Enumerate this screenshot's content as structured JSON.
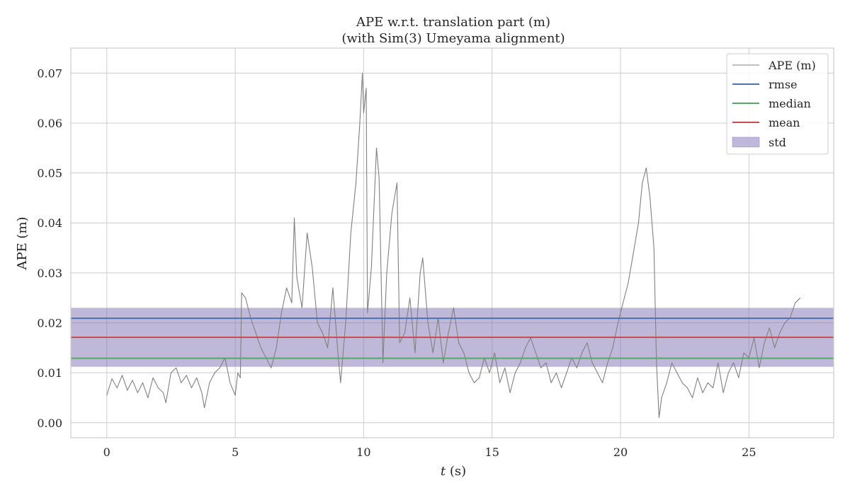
{
  "chart_data": {
    "type": "line",
    "title": "APE w.r.t. translation part (m)",
    "subtitle": "(with Sim(3) Umeyama alignment)",
    "xlabel_italic": "t",
    "xlabel_rest": " (s)",
    "ylabel": "APE (m)",
    "xlim": [
      -1.4,
      28.3
    ],
    "ylim": [
      -0.003,
      0.075
    ],
    "x_ticks": [
      0,
      5,
      10,
      15,
      20,
      25
    ],
    "y_ticks": [
      0.0,
      0.01,
      0.02,
      0.03,
      0.04,
      0.05,
      0.06,
      0.07
    ],
    "y_tick_labels": [
      "0.00",
      "0.01",
      "0.02",
      "0.03",
      "0.04",
      "0.05",
      "0.06",
      "0.07"
    ],
    "grid": true,
    "legend_position": "top-right",
    "colors": {
      "ape": "#808080",
      "rmse": "#4c72b0",
      "median": "#55a868",
      "mean": "#c44e52",
      "std": "#8172b3",
      "grid": "#cccccc",
      "frame": "#cccccc"
    },
    "stats": {
      "rmse": 0.0209,
      "median": 0.0129,
      "mean": 0.0171,
      "std": 0.0059
    },
    "legend": {
      "ape": "APE (m)",
      "rmse": "rmse",
      "median": "median",
      "mean": "mean",
      "std": "std"
    },
    "series": [
      {
        "name": "APE (m)",
        "points": [
          [
            0.0,
            0.0055
          ],
          [
            0.2,
            0.0088
          ],
          [
            0.4,
            0.007
          ],
          [
            0.6,
            0.0095
          ],
          [
            0.8,
            0.0065
          ],
          [
            1.0,
            0.0085
          ],
          [
            1.2,
            0.006
          ],
          [
            1.4,
            0.008
          ],
          [
            1.6,
            0.005
          ],
          [
            1.8,
            0.009
          ],
          [
            2.0,
            0.007
          ],
          [
            2.2,
            0.006
          ],
          [
            2.3,
            0.004
          ],
          [
            2.5,
            0.01
          ],
          [
            2.7,
            0.011
          ],
          [
            2.9,
            0.008
          ],
          [
            3.1,
            0.0095
          ],
          [
            3.3,
            0.007
          ],
          [
            3.5,
            0.009
          ],
          [
            3.7,
            0.006
          ],
          [
            3.8,
            0.003
          ],
          [
            4.0,
            0.008
          ],
          [
            4.2,
            0.01
          ],
          [
            4.4,
            0.011
          ],
          [
            4.6,
            0.013
          ],
          [
            4.8,
            0.008
          ],
          [
            5.0,
            0.0055
          ],
          [
            5.1,
            0.01
          ],
          [
            5.2,
            0.009
          ],
          [
            5.25,
            0.026
          ],
          [
            5.4,
            0.025
          ],
          [
            5.6,
            0.021
          ],
          [
            5.8,
            0.018
          ],
          [
            6.0,
            0.015
          ],
          [
            6.2,
            0.013
          ],
          [
            6.4,
            0.011
          ],
          [
            6.6,
            0.015
          ],
          [
            6.8,
            0.022
          ],
          [
            7.0,
            0.027
          ],
          [
            7.2,
            0.024
          ],
          [
            7.3,
            0.041
          ],
          [
            7.4,
            0.029
          ],
          [
            7.6,
            0.023
          ],
          [
            7.8,
            0.038
          ],
          [
            8.0,
            0.031
          ],
          [
            8.2,
            0.02
          ],
          [
            8.4,
            0.018
          ],
          [
            8.6,
            0.015
          ],
          [
            8.8,
            0.027
          ],
          [
            9.0,
            0.014
          ],
          [
            9.1,
            0.008
          ],
          [
            9.3,
            0.02
          ],
          [
            9.5,
            0.038
          ],
          [
            9.7,
            0.048
          ],
          [
            9.85,
            0.06
          ],
          [
            9.95,
            0.07
          ],
          [
            10.0,
            0.062
          ],
          [
            10.1,
            0.067
          ],
          [
            10.15,
            0.022
          ],
          [
            10.3,
            0.031
          ],
          [
            10.5,
            0.055
          ],
          [
            10.6,
            0.049
          ],
          [
            10.75,
            0.012
          ],
          [
            10.9,
            0.03
          ],
          [
            11.1,
            0.042
          ],
          [
            11.3,
            0.048
          ],
          [
            11.4,
            0.016
          ],
          [
            11.6,
            0.018
          ],
          [
            11.8,
            0.025
          ],
          [
            12.0,
            0.014
          ],
          [
            12.2,
            0.03
          ],
          [
            12.3,
            0.033
          ],
          [
            12.5,
            0.02
          ],
          [
            12.7,
            0.014
          ],
          [
            12.9,
            0.021
          ],
          [
            13.1,
            0.012
          ],
          [
            13.3,
            0.018
          ],
          [
            13.5,
            0.023
          ],
          [
            13.7,
            0.016
          ],
          [
            13.9,
            0.014
          ],
          [
            14.1,
            0.01
          ],
          [
            14.3,
            0.008
          ],
          [
            14.5,
            0.009
          ],
          [
            14.7,
            0.013
          ],
          [
            14.9,
            0.01
          ],
          [
            15.1,
            0.014
          ],
          [
            15.3,
            0.008
          ],
          [
            15.5,
            0.011
          ],
          [
            15.7,
            0.006
          ],
          [
            15.9,
            0.01
          ],
          [
            16.1,
            0.012
          ],
          [
            16.3,
            0.015
          ],
          [
            16.5,
            0.017
          ],
          [
            16.7,
            0.014
          ],
          [
            16.9,
            0.011
          ],
          [
            17.1,
            0.012
          ],
          [
            17.3,
            0.008
          ],
          [
            17.5,
            0.01
          ],
          [
            17.7,
            0.007
          ],
          [
            17.9,
            0.01
          ],
          [
            18.1,
            0.013
          ],
          [
            18.3,
            0.011
          ],
          [
            18.5,
            0.014
          ],
          [
            18.7,
            0.016
          ],
          [
            18.9,
            0.012
          ],
          [
            19.1,
            0.01
          ],
          [
            19.3,
            0.008
          ],
          [
            19.5,
            0.012
          ],
          [
            19.7,
            0.015
          ],
          [
            19.9,
            0.02
          ],
          [
            20.1,
            0.024
          ],
          [
            20.3,
            0.028
          ],
          [
            20.5,
            0.034
          ],
          [
            20.7,
            0.04
          ],
          [
            20.85,
            0.048
          ],
          [
            21.0,
            0.051
          ],
          [
            21.15,
            0.045
          ],
          [
            21.3,
            0.035
          ],
          [
            21.4,
            0.012
          ],
          [
            21.5,
            0.001
          ],
          [
            21.6,
            0.005
          ],
          [
            21.8,
            0.008
          ],
          [
            22.0,
            0.012
          ],
          [
            22.2,
            0.01
          ],
          [
            22.4,
            0.008
          ],
          [
            22.6,
            0.007
          ],
          [
            22.8,
            0.005
          ],
          [
            23.0,
            0.009
          ],
          [
            23.2,
            0.006
          ],
          [
            23.4,
            0.008
          ],
          [
            23.6,
            0.007
          ],
          [
            23.8,
            0.012
          ],
          [
            24.0,
            0.006
          ],
          [
            24.2,
            0.01
          ],
          [
            24.4,
            0.012
          ],
          [
            24.6,
            0.009
          ],
          [
            24.8,
            0.014
          ],
          [
            25.0,
            0.013
          ],
          [
            25.2,
            0.017
          ],
          [
            25.4,
            0.011
          ],
          [
            25.6,
            0.016
          ],
          [
            25.8,
            0.019
          ],
          [
            26.0,
            0.015
          ],
          [
            26.2,
            0.018
          ],
          [
            26.4,
            0.02
          ],
          [
            26.6,
            0.021
          ],
          [
            26.8,
            0.024
          ],
          [
            27.0,
            0.025
          ]
        ]
      }
    ]
  }
}
